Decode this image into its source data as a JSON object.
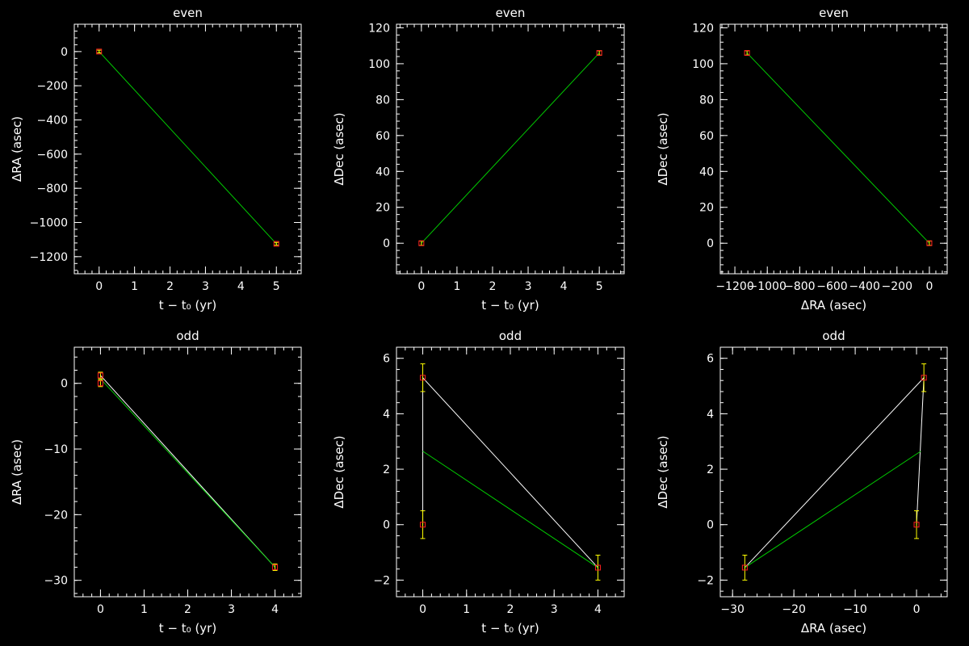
{
  "chart_data": [
    {
      "type": "line",
      "title": "even",
      "xlabel": "t − t₀ (yr)",
      "ylabel": "ΔRA (asec)",
      "xlim": [
        -0.7,
        5.7
      ],
      "ylim": [
        -1300,
        160
      ],
      "xticks": [
        0,
        1,
        2,
        3,
        4,
        5
      ],
      "xtick_labels": [
        "0",
        "1",
        "2",
        "3",
        "4",
        "5"
      ],
      "yticks": [
        0,
        -200,
        -400,
        -600,
        -800,
        -1000,
        -1200
      ],
      "ytick_labels": [
        "0",
        "−200",
        "−400",
        "−600",
        "−800",
        "−1000",
        "−1200"
      ],
      "points": [
        {
          "x": 0,
          "y": 0,
          "err": 8
        },
        {
          "x": 5,
          "y": -1125,
          "err": 8
        }
      ],
      "fit_line": [
        [
          0,
          0
        ],
        [
          5,
          -1125
        ]
      ],
      "connect_line": null
    },
    {
      "type": "line",
      "title": "even",
      "xlabel": "t − t₀ (yr)",
      "ylabel": "ΔDec (asec)",
      "xlim": [
        -0.7,
        5.7
      ],
      "ylim": [
        -17,
        122
      ],
      "xticks": [
        0,
        1,
        2,
        3,
        4,
        5
      ],
      "xtick_labels": [
        "0",
        "1",
        "2",
        "3",
        "4",
        "5"
      ],
      "yticks": [
        0,
        20,
        40,
        60,
        80,
        100,
        120
      ],
      "ytick_labels": [
        "0",
        "20",
        "40",
        "60",
        "80",
        "100",
        "120"
      ],
      "points": [
        {
          "x": 0,
          "y": 0,
          "err": 1.2
        },
        {
          "x": 5,
          "y": 106,
          "err": 1.2
        }
      ],
      "fit_line": [
        [
          0,
          0
        ],
        [
          5,
          106
        ]
      ],
      "connect_line": null
    },
    {
      "type": "scatter",
      "title": "even",
      "xlabel": "ΔRA (asec)",
      "ylabel": "ΔDec (asec)",
      "xlim": [
        -1290,
        110
      ],
      "ylim": [
        -17,
        122
      ],
      "xticks": [
        -1200,
        -1000,
        -800,
        -600,
        -400,
        -200,
        0
      ],
      "xtick_labels": [
        "−1200",
        "−1000",
        "−800",
        "−600",
        "−400",
        "−200",
        "0"
      ],
      "yticks": [
        0,
        20,
        40,
        60,
        80,
        100,
        120
      ],
      "ytick_labels": [
        "0",
        "20",
        "40",
        "60",
        "80",
        "100",
        "120"
      ],
      "points": [
        {
          "x": -1125,
          "y": 106,
          "err": 1.2
        },
        {
          "x": 0,
          "y": 0,
          "err": 1.2
        }
      ],
      "fit_line": [
        [
          -1125,
          106
        ],
        [
          0,
          0
        ]
      ],
      "connect_line": null
    },
    {
      "type": "line",
      "title": "odd",
      "xlabel": "t − t₀ (yr)",
      "ylabel": "ΔRA (asec)",
      "xlim": [
        -0.6,
        4.6
      ],
      "ylim": [
        -32.5,
        5.5
      ],
      "xticks": [
        0,
        1,
        2,
        3,
        4
      ],
      "xtick_labels": [
        "0",
        "1",
        "2",
        "3",
        "4"
      ],
      "yticks": [
        0,
        -10,
        -20,
        -30
      ],
      "ytick_labels": [
        "0",
        "−10",
        "−20",
        "−30"
      ],
      "points": [
        {
          "x": 0,
          "y": 0,
          "err": 0.5
        },
        {
          "x": 0,
          "y": 1.2,
          "err": 0.5
        },
        {
          "x": 4,
          "y": -28,
          "err": 0.5
        }
      ],
      "fit_line": [
        [
          0,
          0.7
        ],
        [
          4,
          -28
        ]
      ],
      "connect_line": [
        [
          0,
          1.2
        ],
        [
          4,
          -28
        ]
      ]
    },
    {
      "type": "line",
      "title": "odd",
      "xlabel": "t − t₀ (yr)",
      "ylabel": "ΔDec (asec)",
      "xlim": [
        -0.6,
        4.6
      ],
      "ylim": [
        -2.6,
        6.4
      ],
      "xticks": [
        0,
        1,
        2,
        3,
        4
      ],
      "xtick_labels": [
        "0",
        "1",
        "2",
        "3",
        "4"
      ],
      "yticks": [
        -2,
        0,
        2,
        4,
        6
      ],
      "ytick_labels": [
        "−2",
        "0",
        "2",
        "4",
        "6"
      ],
      "points": [
        {
          "x": 0,
          "y": 0,
          "err": 0.5
        },
        {
          "x": 0,
          "y": 5.3,
          "err": 0.5
        },
        {
          "x": 4,
          "y": -1.55,
          "err": 0.45
        }
      ],
      "fit_line": [
        [
          0,
          2.65
        ],
        [
          4,
          -1.55
        ]
      ],
      "connect_line": [
        [
          0,
          0
        ],
        [
          0,
          5.3
        ],
        [
          4,
          -1.55
        ]
      ]
    },
    {
      "type": "scatter",
      "title": "odd",
      "xlabel": "ΔRA (asec)",
      "ylabel": "ΔDec (asec)",
      "xlim": [
        -32,
        5
      ],
      "ylim": [
        -2.6,
        6.4
      ],
      "xticks": [
        -30,
        -20,
        -10,
        0
      ],
      "xtick_labels": [
        "−30",
        "−20",
        "−10",
        "0"
      ],
      "yticks": [
        -2,
        0,
        2,
        4,
        6
      ],
      "ytick_labels": [
        "−2",
        "0",
        "2",
        "4",
        "6"
      ],
      "points": [
        {
          "x": -28,
          "y": -1.55,
          "err": 0.45
        },
        {
          "x": 0,
          "y": 0,
          "err": 0.5
        },
        {
          "x": 1.2,
          "y": 5.3,
          "err": 0.5
        }
      ],
      "fit_line": [
        [
          -28,
          -1.55
        ],
        [
          0.7,
          2.65
        ]
      ],
      "connect_line": [
        [
          -28,
          -1.55
        ],
        [
          1.2,
          5.3
        ],
        [
          0,
          0
        ]
      ]
    }
  ],
  "colors": {
    "background": "#000000",
    "axes": "#ffffff",
    "fit_line": "#00cc00",
    "connect_line": "#ffffff",
    "error_bar": "#ffff00",
    "point": "#ff2020"
  }
}
